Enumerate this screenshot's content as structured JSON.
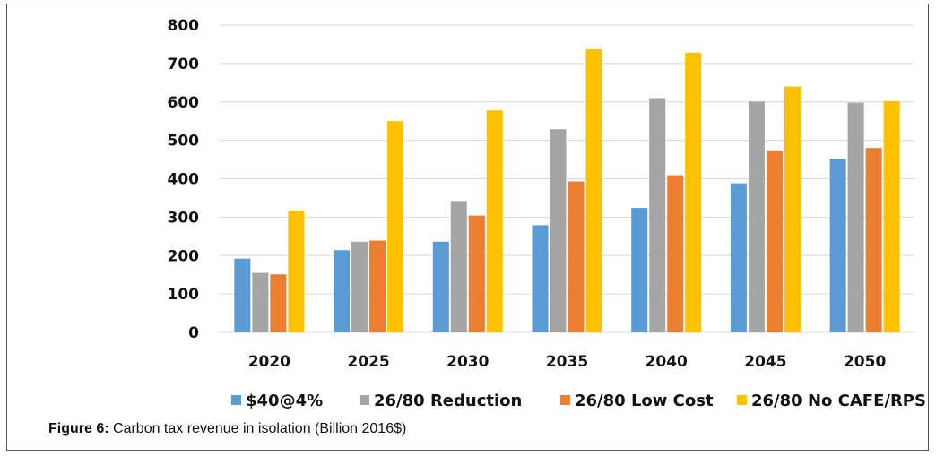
{
  "chart_data": {
    "type": "bar",
    "categories": [
      "2020",
      "2025",
      "2030",
      "2035",
      "2040",
      "2045",
      "2050"
    ],
    "series": [
      {
        "name": "$40@4%",
        "color": "#5B9BD5",
        "values": [
          192,
          214,
          236,
          279,
          324,
          388,
          452
        ]
      },
      {
        "name": "26/80 Reduction",
        "color": "#A5A5A5",
        "values": [
          155,
          236,
          342,
          529,
          610,
          601,
          598
        ]
      },
      {
        "name": "26/80 Low Cost",
        "color": "#ED7D31",
        "values": [
          151,
          239,
          304,
          393,
          409,
          474,
          480
        ]
      },
      {
        "name": "26/80 No CAFE/RPS",
        "color": "#FFC000",
        "values": [
          317,
          550,
          578,
          737,
          728,
          640,
          602
        ]
      }
    ],
    "ylim": [
      0,
      800
    ],
    "yticks": [
      0,
      100,
      200,
      300,
      400,
      500,
      600,
      700,
      800
    ],
    "grid": true,
    "legend": "bottom",
    "gridColor": "#D9D9D9"
  },
  "caption": {
    "label": "Figure 6:",
    "text": " Carbon tax revenue in isolation (Billion 2016$)"
  }
}
